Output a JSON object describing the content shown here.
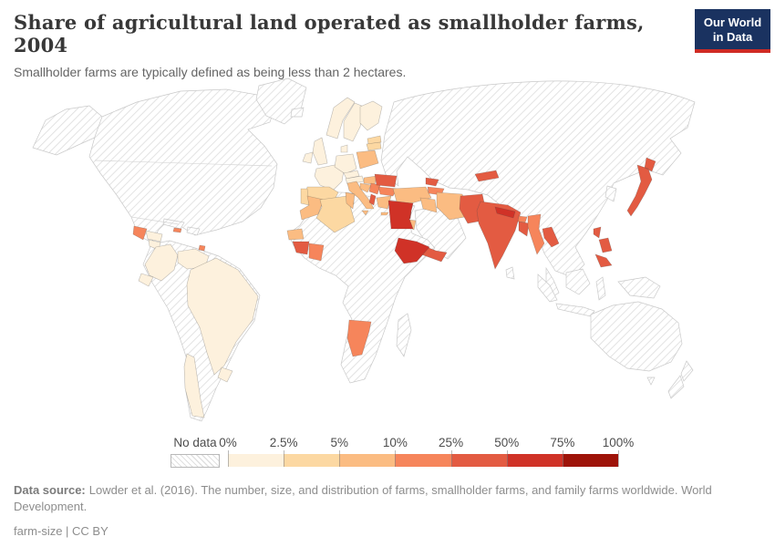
{
  "header": {
    "title": "Share of agricultural land operated as smallholder farms, 2004",
    "subtitle": "Smallholder farms are typically defined as being less than 2 hectares."
  },
  "logo": {
    "line1": "Our World",
    "line2": "in Data",
    "bg_color": "#1a3260",
    "accent_color": "#cf2b24"
  },
  "chart_data": {
    "type": "choropleth_map",
    "title": "Share of agricultural land operated as smallholder farms, 2004",
    "year": "2004",
    "unit": "% of agricultural land",
    "projection": "world",
    "legend": {
      "no_data_label": "No data",
      "ticks": [
        "0%",
        "2.5%",
        "5%",
        "10%",
        "25%",
        "50%",
        "75%",
        "100%"
      ],
      "bins": [
        {
          "range": "0-2.5%",
          "color": "#fdf1dd"
        },
        {
          "range": "2.5-5%",
          "color": "#fcd8a2"
        },
        {
          "range": "5-10%",
          "color": "#fbbc82"
        },
        {
          "range": "10-25%",
          "color": "#f6855b"
        },
        {
          "range": "25-50%",
          "color": "#e35b42"
        },
        {
          "range": "50-75%",
          "color": "#d03227"
        },
        {
          "range": "75-100%",
          "color": "#9e1309"
        }
      ],
      "no_data_pattern": "diagonal-hatch"
    },
    "countries": [
      {
        "name": "Guatemala",
        "bin": "10-25%"
      },
      {
        "name": "Honduras",
        "bin": "0-2.5%"
      },
      {
        "name": "Nicaragua",
        "bin": "0-2.5%"
      },
      {
        "name": "Jamaica",
        "bin": "10-25%"
      },
      {
        "name": "Trinidad and Tobago",
        "bin": "10-25%"
      },
      {
        "name": "Colombia",
        "bin": "0-2.5%"
      },
      {
        "name": "Venezuela",
        "bin": "0-2.5%"
      },
      {
        "name": "Ecuador",
        "bin": "0-2.5%"
      },
      {
        "name": "Brazil",
        "bin": "0-2.5%"
      },
      {
        "name": "Chile",
        "bin": "0-2.5%"
      },
      {
        "name": "Uruguay",
        "bin": "0-2.5%"
      },
      {
        "name": "Norway",
        "bin": "0-2.5%"
      },
      {
        "name": "Sweden",
        "bin": "0-2.5%"
      },
      {
        "name": "Finland",
        "bin": "0-2.5%"
      },
      {
        "name": "Denmark",
        "bin": "0-2.5%"
      },
      {
        "name": "United Kingdom",
        "bin": "0-2.5%"
      },
      {
        "name": "Ireland",
        "bin": "0-2.5%"
      },
      {
        "name": "France",
        "bin": "0-2.5%"
      },
      {
        "name": "Germany",
        "bin": "0-2.5%"
      },
      {
        "name": "Czechia",
        "bin": "0-2.5%"
      },
      {
        "name": "Austria",
        "bin": "0-2.5%"
      },
      {
        "name": "Spain",
        "bin": "2.5-5%"
      },
      {
        "name": "Portugal",
        "bin": "2.5-5%"
      },
      {
        "name": "Latvia",
        "bin": "2.5-5%"
      },
      {
        "name": "Lithuania",
        "bin": "2.5-5%"
      },
      {
        "name": "Poland",
        "bin": "5-10%"
      },
      {
        "name": "Hungary",
        "bin": "5-10%"
      },
      {
        "name": "Italy",
        "bin": "5-10%"
      },
      {
        "name": "Croatia",
        "bin": "5-10%"
      },
      {
        "name": "Serbia",
        "bin": "10-25%"
      },
      {
        "name": "Romania",
        "bin": "25-50%"
      },
      {
        "name": "Bulgaria",
        "bin": "10-25%"
      },
      {
        "name": "Albania",
        "bin": "25-50%"
      },
      {
        "name": "Greece",
        "bin": "5-10%"
      },
      {
        "name": "Turkey",
        "bin": "5-10%"
      },
      {
        "name": "Cyprus",
        "bin": "10-25%"
      },
      {
        "name": "Lebanon",
        "bin": "50-75%"
      },
      {
        "name": "Jordan",
        "bin": "5-10%"
      },
      {
        "name": "Georgia",
        "bin": "25-50%"
      },
      {
        "name": "Azerbaijan",
        "bin": "10-25%"
      },
      {
        "name": "Kyrgyzstan",
        "bin": "25-50%"
      },
      {
        "name": "Iraq",
        "bin": "5-10%"
      },
      {
        "name": "Iran",
        "bin": "5-10%"
      },
      {
        "name": "Yemen",
        "bin": "25-50%"
      },
      {
        "name": "Morocco",
        "bin": "5-10%"
      },
      {
        "name": "Algeria",
        "bin": "2.5-5%"
      },
      {
        "name": "Tunisia",
        "bin": "5-10%"
      },
      {
        "name": "Egypt",
        "bin": "50-75%"
      },
      {
        "name": "Senegal",
        "bin": "5-10%"
      },
      {
        "name": "Guinea",
        "bin": "25-50%"
      },
      {
        "name": "Cote d'Ivoire",
        "bin": "10-25%"
      },
      {
        "name": "Ethiopia",
        "bin": "50-75%"
      },
      {
        "name": "Namibia",
        "bin": "10-25%"
      },
      {
        "name": "Pakistan",
        "bin": "25-50%"
      },
      {
        "name": "India",
        "bin": "25-50%"
      },
      {
        "name": "Nepal",
        "bin": "50-75%"
      },
      {
        "name": "Bhutan",
        "bin": "10-25%"
      },
      {
        "name": "Bangladesh",
        "bin": "25-50%"
      },
      {
        "name": "Myanmar",
        "bin": "10-25%"
      },
      {
        "name": "Laos",
        "bin": "25-50%"
      },
      {
        "name": "Japan",
        "bin": "25-50%"
      },
      {
        "name": "Philippines",
        "bin": "25-50%"
      }
    ]
  },
  "footer": {
    "source_label": "Data source:",
    "source_text": "Lowder et al. (2016). The number, size, and distribution of farms, smallholder farms, and family farms worldwide. World Development.",
    "note": "farm-size | CC BY"
  }
}
